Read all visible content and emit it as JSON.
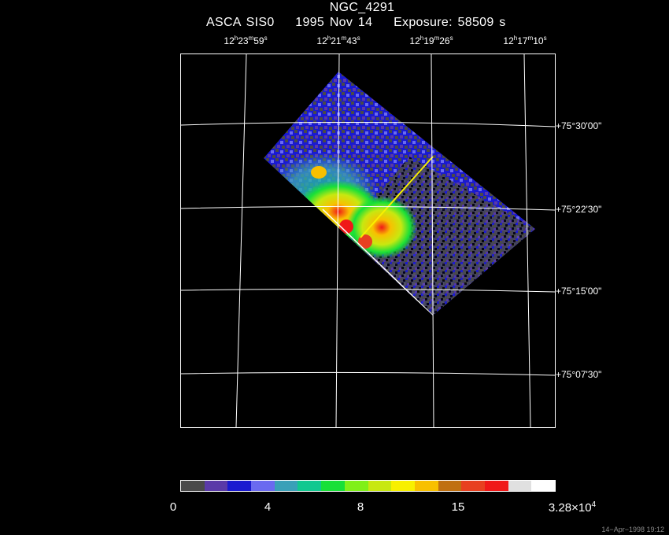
{
  "header": {
    "title": "NGC_4291",
    "instrument": "ASCA SIS0",
    "date": "1995 Nov 14",
    "exposure": "Exposure: 58509 s"
  },
  "ra_labels": [
    {
      "h": "12",
      "hu": "h",
      "m": "23",
      "mu": "m",
      "s": "59",
      "su": "s"
    },
    {
      "h": "12",
      "hu": "h",
      "m": "21",
      "mu": "m",
      "s": "43",
      "su": "s"
    },
    {
      "h": "12",
      "hu": "h",
      "m": "19",
      "mu": "m",
      "s": "26",
      "su": "s"
    },
    {
      "h": "12",
      "hu": "h",
      "m": "17",
      "mu": "m",
      "s": "10",
      "su": "s"
    }
  ],
  "dec_labels": [
    "+75°30'00\"",
    "+75°22'30\"",
    "+75°15'00\"",
    "+75°07'30\""
  ],
  "colorbar": {
    "colors": [
      "#4a4a4a",
      "#5a3aa8",
      "#1a1ad0",
      "#6a6af0",
      "#3aa0b8",
      "#10c890",
      "#18e038",
      "#80f018",
      "#c8e810",
      "#f8f000",
      "#f8c000",
      "#c07010",
      "#e84020",
      "#f01818",
      "#e0e0e0",
      "#ffffff"
    ],
    "labels": [
      "0",
      "4",
      "8",
      "15"
    ],
    "max_label": {
      "mant": "3.28×10",
      "exp": "4"
    }
  },
  "footer": "14−Apr−1998 19:12"
}
